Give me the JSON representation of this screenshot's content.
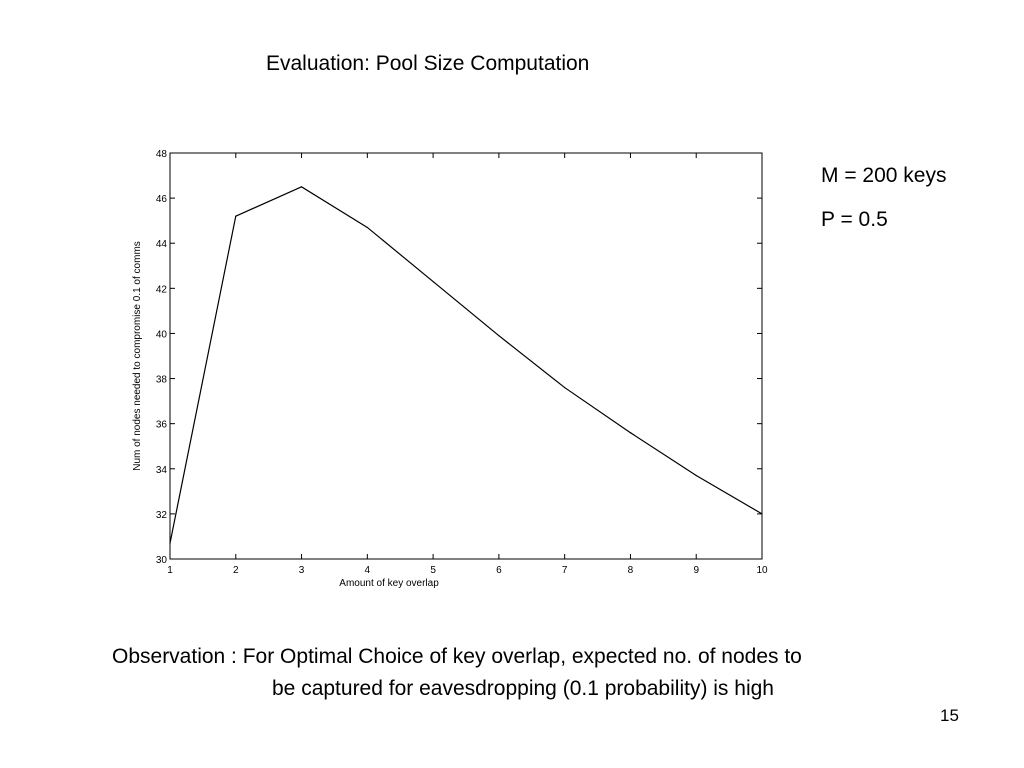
{
  "slide": {
    "title": "Evaluation: Pool Size Computation",
    "page_number": "15"
  },
  "params": {
    "m_label": "M = 200 keys",
    "p_label": "P = 0.5"
  },
  "observation": {
    "line1": "Observation : For Optimal Choice of  key overlap, expected no. of nodes to",
    "line2": "be captured for eavesdropping (0.1 probability) is high"
  },
  "chart_data": {
    "type": "line",
    "title": "",
    "xlabel": "Amount of key overlap",
    "ylabel": "Num of nodes needed to compromise 0.1 of comms",
    "xlim": [
      1,
      10
    ],
    "ylim": [
      30,
      48
    ],
    "xticks": [
      1,
      2,
      3,
      4,
      5,
      6,
      7,
      8,
      9,
      10
    ],
    "yticks": [
      30,
      32,
      34,
      36,
      38,
      40,
      42,
      44,
      46,
      48
    ],
    "grid": false,
    "line_color": "#000000",
    "series": [
      {
        "x": [
          1,
          2,
          3,
          4,
          5,
          6,
          7,
          8,
          9,
          10
        ],
        "values": [
          30.7,
          45.2,
          46.5,
          44.7,
          42.3,
          39.9,
          37.6,
          35.6,
          33.7,
          32.0
        ]
      }
    ]
  }
}
